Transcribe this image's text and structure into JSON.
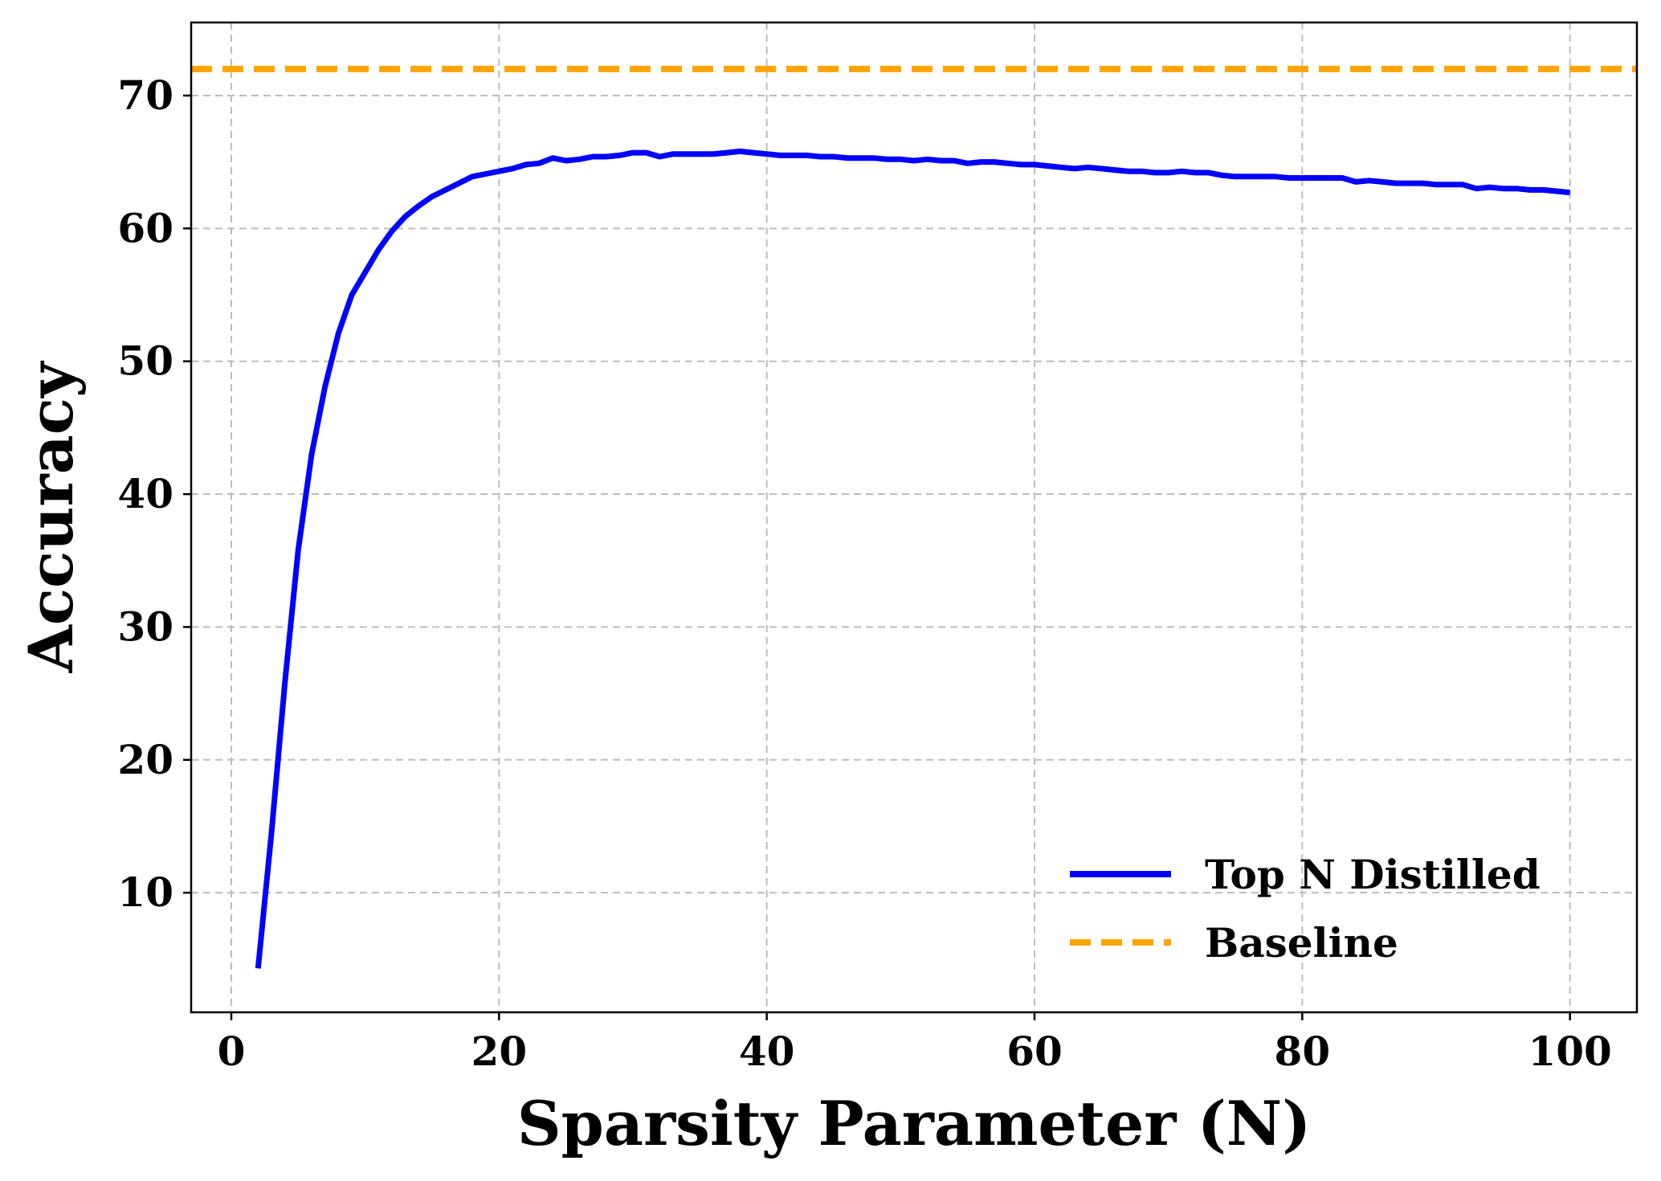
{
  "chart_data": {
    "type": "line",
    "title": "",
    "xlabel": "Sparsity Parameter (N)",
    "ylabel": "Accuracy",
    "xlim": [
      -3,
      105
    ],
    "ylim": [
      1,
      75.5
    ],
    "xticks": [
      "0",
      "20",
      "40",
      "60",
      "80",
      "100"
    ],
    "yticks": [
      "10",
      "20",
      "30",
      "40",
      "50",
      "60",
      "70"
    ],
    "grid": true,
    "legend_position": "lower-right",
    "series": [
      {
        "name": "Top N Distilled",
        "color": "#0000ff",
        "style": "solid",
        "x": [
          2,
          3,
          4,
          5,
          6,
          7,
          8,
          9,
          10,
          11,
          12,
          13,
          14,
          15,
          16,
          17,
          18,
          19,
          20,
          21,
          22,
          23,
          24,
          25,
          26,
          27,
          28,
          29,
          30,
          31,
          32,
          33,
          34,
          35,
          36,
          37,
          38,
          39,
          40,
          41,
          42,
          43,
          44,
          45,
          46,
          47,
          48,
          49,
          50,
          51,
          52,
          53,
          54,
          55,
          56,
          57,
          58,
          59,
          60,
          61,
          62,
          63,
          64,
          65,
          66,
          67,
          68,
          69,
          70,
          71,
          72,
          73,
          74,
          75,
          76,
          77,
          78,
          79,
          80,
          81,
          82,
          83,
          84,
          85,
          86,
          87,
          88,
          89,
          90,
          91,
          92,
          93,
          94,
          95,
          96,
          97,
          98,
          99,
          100
        ],
        "y": [
          4.3,
          14.5,
          25.8,
          35.8,
          43.0,
          48.1,
          52.1,
          55.0,
          56.7,
          58.4,
          59.8,
          60.9,
          61.7,
          62.4,
          62.9,
          63.4,
          63.9,
          64.1,
          64.3,
          64.5,
          64.8,
          64.9,
          65.3,
          65.1,
          65.2,
          65.4,
          65.4,
          65.5,
          65.7,
          65.7,
          65.4,
          65.6,
          65.6,
          65.6,
          65.6,
          65.7,
          65.8,
          65.7,
          65.6,
          65.5,
          65.5,
          65.5,
          65.4,
          65.4,
          65.3,
          65.3,
          65.3,
          65.2,
          65.2,
          65.1,
          65.2,
          65.1,
          65.1,
          64.9,
          65.0,
          65.0,
          64.9,
          64.8,
          64.8,
          64.7,
          64.6,
          64.5,
          64.6,
          64.5,
          64.4,
          64.3,
          64.3,
          64.2,
          64.2,
          64.3,
          64.2,
          64.2,
          64.0,
          63.9,
          63.9,
          63.9,
          63.9,
          63.8,
          63.8,
          63.8,
          63.8,
          63.8,
          63.5,
          63.6,
          63.5,
          63.4,
          63.4,
          63.4,
          63.3,
          63.3,
          63.3,
          63.0,
          63.1,
          63.0,
          63.0,
          62.9,
          62.9,
          62.8,
          62.7
        ]
      },
      {
        "name": "Baseline",
        "color": "#ffa500",
        "style": "dashed",
        "y": 72.0
      }
    ]
  }
}
